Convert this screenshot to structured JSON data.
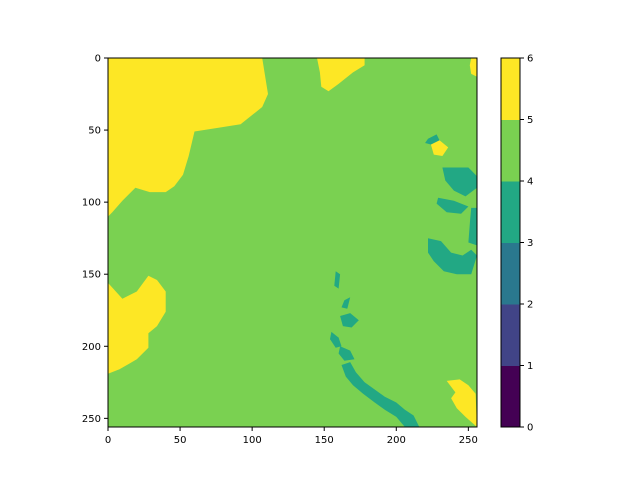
{
  "chart_data": {
    "type": "heatmap",
    "title": "",
    "xlabel": "",
    "ylabel": "",
    "xlim": [
      0,
      256
    ],
    "ylim": [
      256,
      0
    ],
    "x_ticks": [
      "0",
      "50",
      "100",
      "150",
      "200",
      "250"
    ],
    "y_ticks": [
      "0",
      "50",
      "100",
      "150",
      "200",
      "250"
    ],
    "colorbar": {
      "levels": [
        0,
        1,
        2,
        3,
        4,
        5,
        6
      ],
      "tick_labels": [
        "0",
        "1",
        "2",
        "3",
        "4",
        "5",
        "6"
      ],
      "colors": [
        "#440154",
        "#414487",
        "#2a788e",
        "#22a884",
        "#7ad151",
        "#fde725"
      ]
    },
    "class_colors": {
      "class_3_4": "#22a884",
      "class_4_5": "#7ad151",
      "class_5_6": "#fde725"
    },
    "background_class": "class_4_5",
    "regions": [
      {
        "name": "top-left-yellow",
        "class": "class_5_6",
        "polygon": [
          [
            0,
            0
          ],
          [
            107,
            0
          ],
          [
            111,
            25
          ],
          [
            107,
            34
          ],
          [
            92,
            46
          ],
          [
            60,
            51
          ],
          [
            56,
            68
          ],
          [
            52,
            81
          ],
          [
            46,
            89
          ],
          [
            40,
            93
          ],
          [
            29,
            93
          ],
          [
            19,
            90
          ],
          [
            10,
            99
          ],
          [
            3,
            107
          ],
          [
            0,
            110
          ]
        ]
      },
      {
        "name": "left-bottom-yellow",
        "class": "class_5_6",
        "polygon": [
          [
            0,
            156
          ],
          [
            10,
            167
          ],
          [
            20,
            162
          ],
          [
            28,
            151
          ],
          [
            34,
            154
          ],
          [
            40,
            162
          ],
          [
            40,
            176
          ],
          [
            34,
            186
          ],
          [
            28,
            191
          ],
          [
            28,
            201
          ],
          [
            20,
            209
          ],
          [
            8,
            216
          ],
          [
            0,
            219
          ]
        ]
      },
      {
        "name": "top-mid-yellow",
        "class": "class_5_6",
        "polygon": [
          [
            145,
            0
          ],
          [
            178,
            0
          ],
          [
            178,
            5
          ],
          [
            170,
            10
          ],
          [
            160,
            18
          ],
          [
            153,
            23
          ],
          [
            148,
            20
          ],
          [
            147,
            10
          ]
        ]
      },
      {
        "name": "top-right-yellow",
        "class": "class_5_6",
        "polygon": [
          [
            252,
            0
          ],
          [
            256,
            0
          ],
          [
            256,
            13
          ],
          [
            252,
            11
          ],
          [
            251,
            5
          ]
        ]
      },
      {
        "name": "right-small-yellow",
        "class": "class_5_6",
        "polygon": [
          [
            224,
            60
          ],
          [
            230,
            57
          ],
          [
            236,
            62
          ],
          [
            232,
            68
          ],
          [
            226,
            67
          ]
        ]
      },
      {
        "name": "bottom-right-yellow",
        "class": "class_5_6",
        "polygon": [
          [
            235,
            224
          ],
          [
            244,
            223
          ],
          [
            250,
            227
          ],
          [
            255,
            233
          ],
          [
            256,
            256
          ],
          [
            248,
            249
          ],
          [
            242,
            243
          ],
          [
            238,
            236
          ],
          [
            241,
            232
          ]
        ]
      },
      {
        "name": "right-teal-1",
        "class": "class_3_4",
        "polygon": [
          [
            222,
            56
          ],
          [
            228,
            53
          ],
          [
            230,
            57
          ],
          [
            224,
            60
          ],
          [
            220,
            59
          ]
        ]
      },
      {
        "name": "right-teal-2",
        "class": "class_3_4",
        "polygon": [
          [
            232,
            76
          ],
          [
            250,
            76
          ],
          [
            256,
            82
          ],
          [
            256,
            90
          ],
          [
            248,
            96
          ],
          [
            240,
            92
          ],
          [
            234,
            85
          ]
        ]
      },
      {
        "name": "right-teal-3",
        "class": "class_3_4",
        "polygon": [
          [
            229,
            97
          ],
          [
            240,
            99
          ],
          [
            250,
            103
          ],
          [
            245,
            108
          ],
          [
            235,
            107
          ],
          [
            228,
            101
          ]
        ]
      },
      {
        "name": "right-teal-4",
        "class": "class_3_4",
        "polygon": [
          [
            252,
            104
          ],
          [
            256,
            104
          ],
          [
            256,
            130
          ],
          [
            250,
            128
          ],
          [
            251,
            115
          ]
        ]
      },
      {
        "name": "right-teal-5",
        "class": "class_3_4",
        "polygon": [
          [
            222,
            125
          ],
          [
            231,
            127
          ],
          [
            238,
            135
          ],
          [
            246,
            137
          ],
          [
            252,
            133
          ],
          [
            256,
            137
          ],
          [
            252,
            150
          ],
          [
            242,
            150
          ],
          [
            233,
            148
          ],
          [
            226,
            141
          ],
          [
            222,
            135
          ]
        ]
      },
      {
        "name": "chain-teal-1",
        "class": "class_3_4",
        "polygon": [
          [
            158,
            148
          ],
          [
            161,
            150
          ],
          [
            160,
            160
          ],
          [
            157,
            158
          ]
        ]
      },
      {
        "name": "chain-teal-2",
        "class": "class_3_4",
        "polygon": [
          [
            164,
            168
          ],
          [
            168,
            166
          ],
          [
            166,
            174
          ],
          [
            162,
            173
          ]
        ]
      },
      {
        "name": "chain-teal-3",
        "class": "class_3_4",
        "polygon": [
          [
            161,
            179
          ],
          [
            168,
            177
          ],
          [
            174,
            182
          ],
          [
            169,
            187
          ],
          [
            163,
            186
          ]
        ]
      },
      {
        "name": "chain-teal-4",
        "class": "class_3_4",
        "polygon": [
          [
            155,
            190
          ],
          [
            160,
            194
          ],
          [
            162,
            200
          ],
          [
            158,
            201
          ],
          [
            154,
            195
          ]
        ]
      },
      {
        "name": "chain-teal-5",
        "class": "class_3_4",
        "polygon": [
          [
            161,
            200
          ],
          [
            168,
            203
          ],
          [
            171,
            209
          ],
          [
            164,
            210
          ],
          [
            160,
            205
          ]
        ]
      },
      {
        "name": "lower-teal-river",
        "class": "class_3_4",
        "polygon": [
          [
            162,
            213
          ],
          [
            168,
            211
          ],
          [
            172,
            218
          ],
          [
            178,
            225
          ],
          [
            185,
            230
          ],
          [
            192,
            235
          ],
          [
            200,
            239
          ],
          [
            206,
            244
          ],
          [
            212,
            248
          ],
          [
            216,
            256
          ],
          [
            206,
            256
          ],
          [
            200,
            249
          ],
          [
            192,
            244
          ],
          [
            185,
            239
          ],
          [
            177,
            233
          ],
          [
            170,
            227
          ],
          [
            165,
            221
          ]
        ]
      }
    ]
  }
}
